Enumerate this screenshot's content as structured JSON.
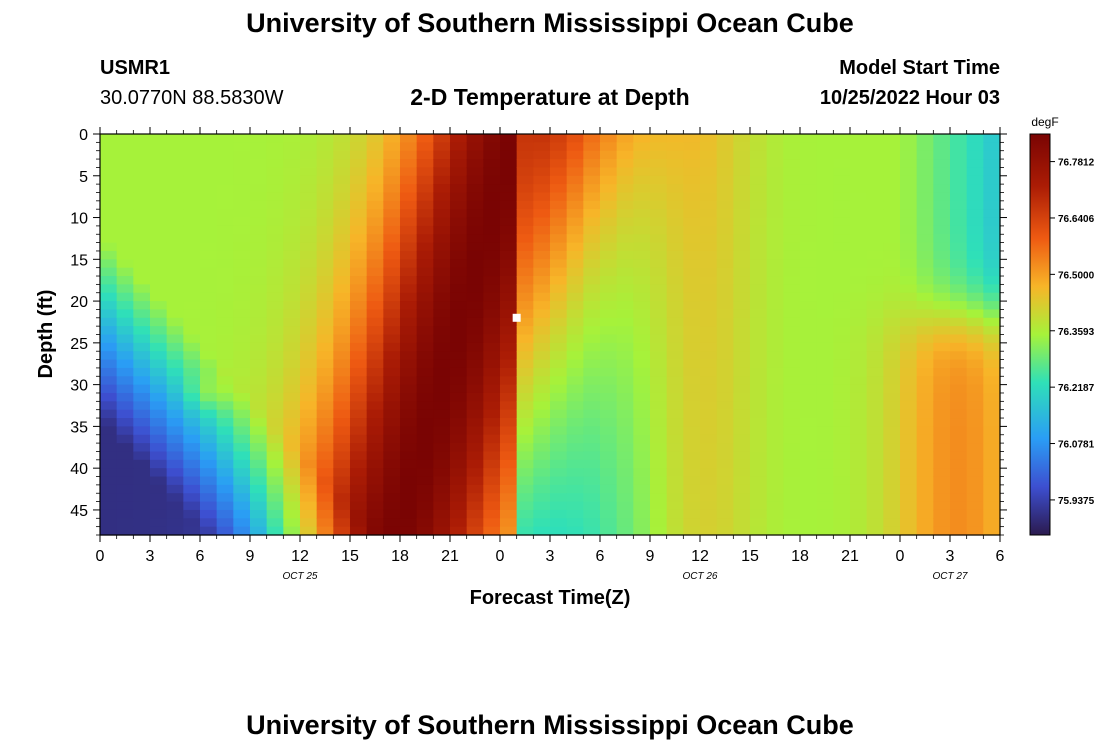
{
  "page": {
    "title": "University of Southern Mississippi Ocean Cube",
    "station_id": "USMR1",
    "coordinates": "30.0770N  88.5830W",
    "plot_title": "2-D Temperature at Depth",
    "model_start_label": "Model Start Time",
    "model_start_value": "10/25/2022 Hour 03",
    "footer_title": "University of Southern Mississippi Ocean Cube"
  },
  "chart_data": {
    "type": "heatmap",
    "title": "2-D Temperature at Depth",
    "xlabel": "Forecast Time(Z)",
    "ylabel": "Depth (ft)",
    "x_ticks": [
      "0",
      "3",
      "6",
      "9",
      "12",
      "15",
      "18",
      "21",
      "0",
      "3",
      "6",
      "9",
      "12",
      "15",
      "18",
      "21",
      "0",
      "3",
      "6"
    ],
    "x_range_hours": [
      0,
      54
    ],
    "date_labels": [
      {
        "text": "OCT 25",
        "hour": 12
      },
      {
        "text": "OCT 26",
        "hour": 36
      },
      {
        "text": "OCT 27",
        "hour": 51
      }
    ],
    "y_ticks": [
      0,
      5,
      10,
      15,
      20,
      25,
      30,
      35,
      40,
      45
    ],
    "ylim": [
      0,
      48
    ],
    "y_inverted": true,
    "colorbar": {
      "unit": "degF",
      "labels": [
        "76.7812",
        "76.6406",
        "76.5000",
        "76.3593",
        "76.2187",
        "76.0781",
        "75.9375"
      ],
      "range": [
        75.85,
        76.85
      ],
      "colors": [
        "#2b1a4e",
        "#3d4fd0",
        "#2a9df5",
        "#2fe0b8",
        "#a6f23a",
        "#f7b528",
        "#ee5a12",
        "#ab1c05",
        "#7a0403"
      ]
    },
    "marker": {
      "hour": 25,
      "depth": 22
    }
  }
}
